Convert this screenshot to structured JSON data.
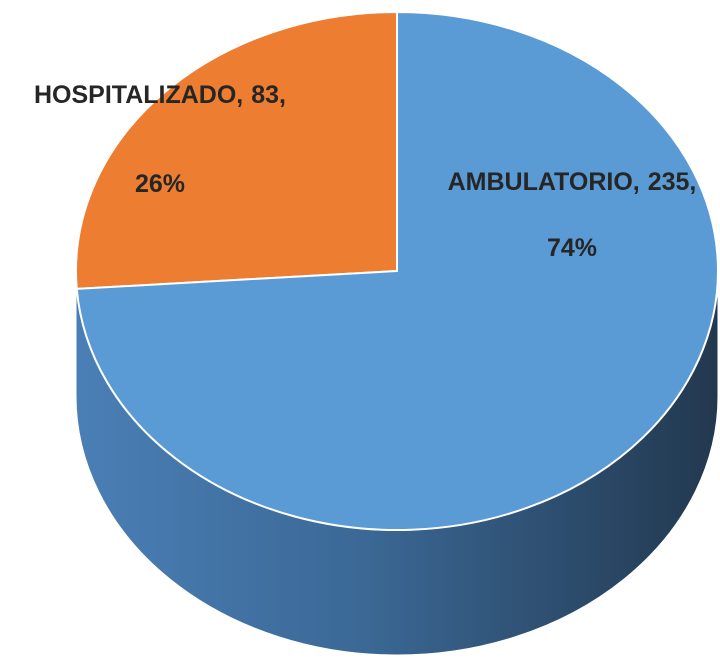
{
  "chart_data": {
    "type": "pie3d",
    "categories": [
      "HOSPITALIZADO,",
      "AMBULATORIO,"
    ],
    "values": [
      83,
      235
    ],
    "value_labels": [
      "83,",
      "235,"
    ],
    "percents": [
      26,
      74
    ],
    "percent_labels": [
      "26%",
      "74%"
    ],
    "colors": [
      "#ed7d31",
      "#5b9bd5"
    ]
  }
}
